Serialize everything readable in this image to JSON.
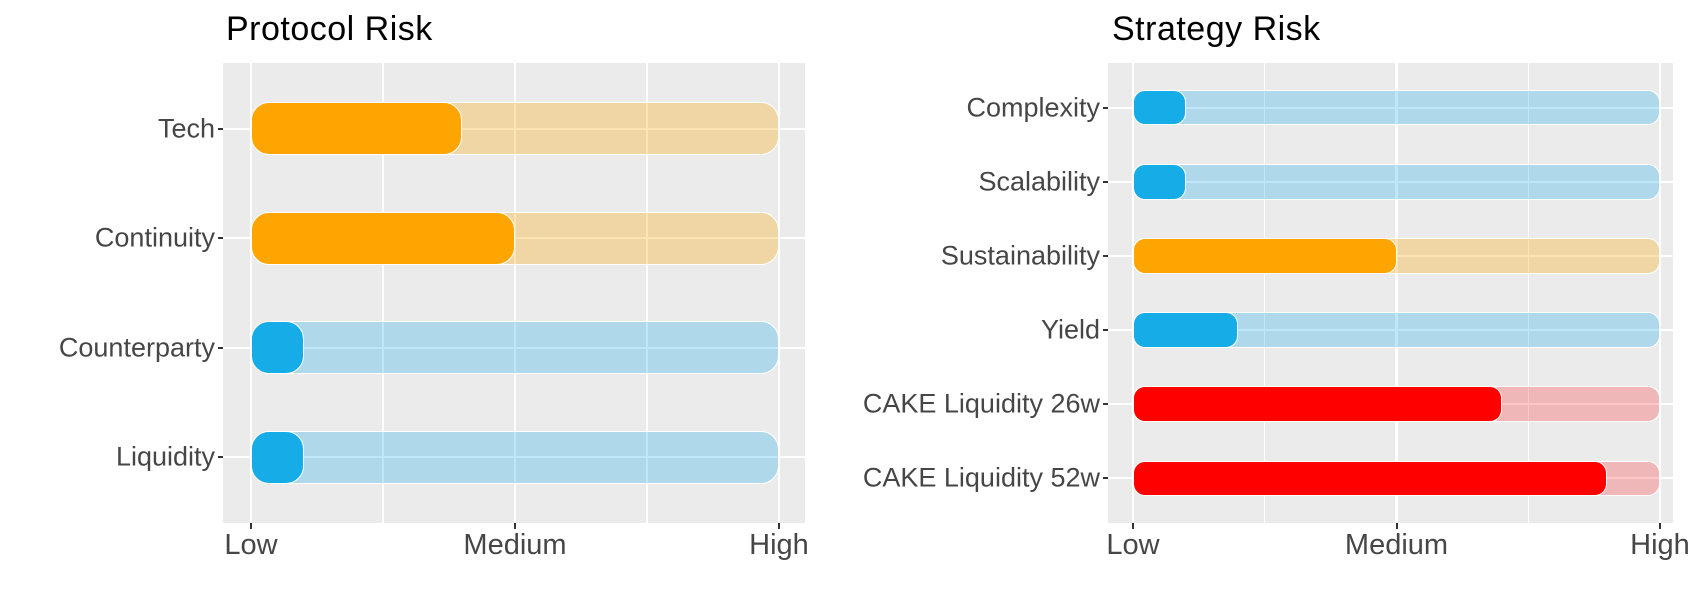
{
  "figure": {
    "background": "#FFFFFF",
    "description": "Two side-by-side horizontal risk gauge bar charts"
  },
  "theme": {
    "panel_background": "#EBEBEB",
    "gridline_color": "#FFFFFF",
    "axis_text_color": "#464646",
    "tick_mark_color": "#333333",
    "title_color": "#000000",
    "bar_outline_color": "#FFFFFF",
    "accent_orange": "#FFA502",
    "accent_blue": "#15ACE8",
    "accent_red": "#FF0000"
  },
  "chart_data": [
    {
      "type": "bar",
      "orientation": "horizontal",
      "title": "Protocol Risk",
      "grid": "on",
      "legend": "none",
      "x_axis": {
        "ticks": [
          "Low",
          "Medium",
          "High"
        ],
        "tick_positions": [
          0,
          0.5,
          1
        ],
        "minor_positions": [
          0.25,
          0.75
        ],
        "range": [
          0,
          1
        ]
      },
      "categories": [
        "Tech",
        "Continuity",
        "Counterparty",
        "Liquidity"
      ],
      "values": [
        0.4,
        0.5,
        0.1,
        0.1
      ],
      "bar_colors": [
        "#FFA502",
        "#FFA502",
        "#15ACE8",
        "#15ACE8"
      ],
      "track_colors": [
        "rgba(255,166,2,0.30)",
        "rgba(255,166,2,0.30)",
        "rgba(21,172,232,0.28)",
        "rgba(21,172,232,0.28)"
      ]
    },
    {
      "type": "bar",
      "orientation": "horizontal",
      "title": "Strategy Risk",
      "grid": "on",
      "legend": "none",
      "x_axis": {
        "ticks": [
          "Low",
          "Medium",
          "High"
        ],
        "tick_positions": [
          0,
          0.5,
          1
        ],
        "minor_positions": [
          0.25,
          0.75
        ],
        "range": [
          0,
          1
        ]
      },
      "categories": [
        "Complexity",
        "Scalability",
        "Sustainability",
        "Yield",
        "CAKE Liquidity 26w",
        "CAKE Liquidity 52w"
      ],
      "values": [
        0.1,
        0.1,
        0.5,
        0.2,
        0.7,
        0.9
      ],
      "bar_colors": [
        "#15ACE8",
        "#15ACE8",
        "#FFA502",
        "#15ACE8",
        "#FF0000",
        "#FF0000"
      ],
      "track_colors": [
        "rgba(21,172,232,0.28)",
        "rgba(21,172,232,0.28)",
        "rgba(255,166,2,0.30)",
        "rgba(21,172,232,0.28)",
        "rgba(255,0,0,0.22)",
        "rgba(255,0,0,0.22)"
      ]
    }
  ]
}
